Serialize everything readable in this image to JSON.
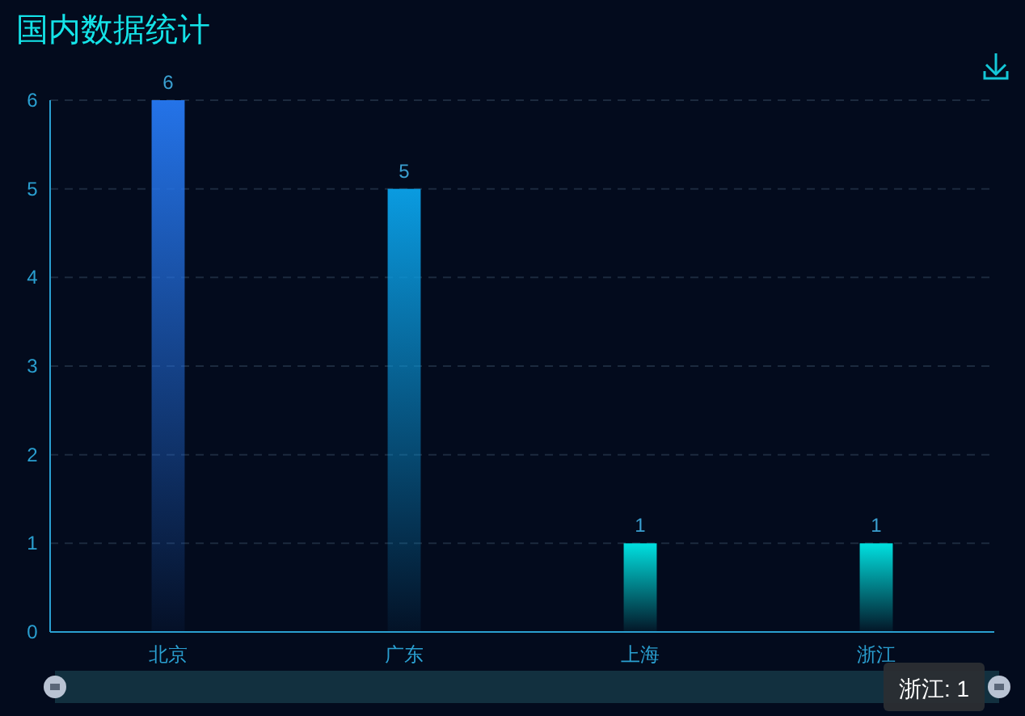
{
  "chart_data": {
    "type": "bar",
    "title": "国内数据统计",
    "categories": [
      "北京",
      "广东",
      "上海",
      "浙江"
    ],
    "values": [
      6,
      5,
      1,
      1
    ],
    "colors": [
      "#2473e8",
      "#0a9be0",
      "#00e0e0",
      "#00e0e0"
    ],
    "ylim": [
      0,
      6
    ],
    "yticks": [
      0,
      1,
      2,
      3,
      4,
      5,
      6
    ],
    "grid": "y",
    "data_labels": true,
    "annotations": [
      "浙江: 1"
    ]
  }
}
